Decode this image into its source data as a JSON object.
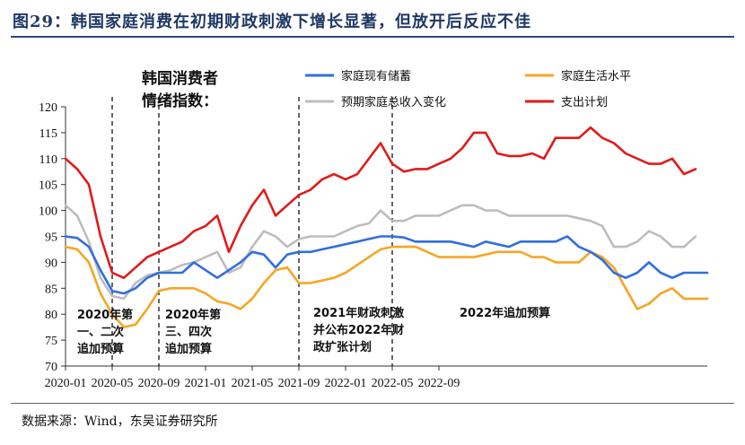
{
  "title": "图29：韩国家庭消费在初期财政刺激下增长显著，但放开后反应不佳",
  "source": "数据来源：Wind，东吴证券研究所",
  "chart_data": {
    "type": "line",
    "ylim": [
      70,
      120
    ],
    "yticks": [
      70,
      75,
      80,
      85,
      90,
      95,
      100,
      105,
      110,
      115,
      120
    ],
    "x_start": "2020-01",
    "x_end": "2022-12",
    "xtick_labels": [
      "2020-01",
      "2020-05",
      "2020-09",
      "2021-01",
      "2021-05",
      "2021-09",
      "2022-01",
      "2022-05",
      "2022-09"
    ],
    "series": [
      {
        "name": "家庭现有储蓄",
        "color": "#2f6fde",
        "values": [
          95,
          94.7,
          93,
          88.5,
          84.5,
          84,
          85,
          87,
          88,
          88,
          88,
          90,
          88.5,
          87,
          88.5,
          90,
          92,
          91.5,
          89,
          91.5,
          92,
          92,
          92.5,
          93,
          93.5,
          94,
          94.5,
          95,
          95,
          94.8,
          94,
          94,
          94,
          94,
          93.5,
          93,
          94,
          93.5,
          93,
          94,
          94,
          94,
          94,
          95,
          93,
          92,
          90.5,
          88,
          87,
          88,
          90,
          88,
          87,
          88,
          88,
          88
        ]
      },
      {
        "name": "家庭生活水平",
        "color": "#f5a623",
        "values": [
          93,
          92.5,
          90,
          84,
          80,
          77.5,
          78,
          81,
          84.5,
          85,
          85,
          85,
          84,
          82.5,
          82,
          81,
          83,
          86,
          88.5,
          89,
          86,
          86,
          86.5,
          87,
          88,
          89.5,
          91,
          92.5,
          93,
          93,
          93,
          92,
          91,
          91,
          91,
          91,
          91.5,
          92,
          92,
          92,
          91,
          91,
          90,
          90,
          90,
          92,
          91,
          89,
          85,
          81,
          82,
          84,
          85,
          83,
          83,
          83
        ]
      },
      {
        "name": "预期家庭总收入变化",
        "color": "#bdbdbd",
        "values": [
          101,
          99,
          94,
          87,
          83.5,
          83,
          86,
          87.5,
          88,
          88.5,
          89.5,
          90,
          91,
          92,
          88,
          89,
          93,
          96,
          95,
          93,
          94.5,
          95,
          95,
          95,
          96,
          97,
          97.5,
          100,
          98,
          98,
          99,
          99,
          99,
          100,
          101,
          101,
          100,
          100,
          99,
          99,
          99,
          99,
          99,
          99,
          98.5,
          98,
          97,
          93,
          93,
          94,
          96,
          95,
          93,
          93,
          95
        ]
      },
      {
        "name": "支出计划",
        "color": "#e01b1b",
        "values": [
          110,
          108,
          105,
          95,
          88,
          87,
          89,
          91,
          92,
          93,
          94,
          96,
          97,
          99,
          92,
          97,
          101,
          104,
          99,
          101,
          103,
          104,
          106,
          107,
          106,
          107,
          110,
          113,
          109,
          107.5,
          108,
          108,
          109,
          110,
          112,
          115,
          115,
          111,
          110.5,
          110.5,
          111,
          110,
          114,
          114,
          114,
          116,
          114,
          113,
          111,
          110,
          109,
          109,
          110,
          107,
          108
        ]
      }
    ],
    "annotations": {
      "index_label_line1": "韩国消费者",
      "index_label_line2": "情绪指数：",
      "a1_line1": "2020年第",
      "a1_line2": "一、二次",
      "a1_line3": "追加预算",
      "a2_line1": "2020年第",
      "a2_line2": "三、四次",
      "a2_line3": "追加预算",
      "a3_line1": "2021年财政刺激",
      "a3_line2": "并公布2022年财",
      "a3_line3": "政扩张计划",
      "a4_line1": "2022年追加预算"
    }
  }
}
